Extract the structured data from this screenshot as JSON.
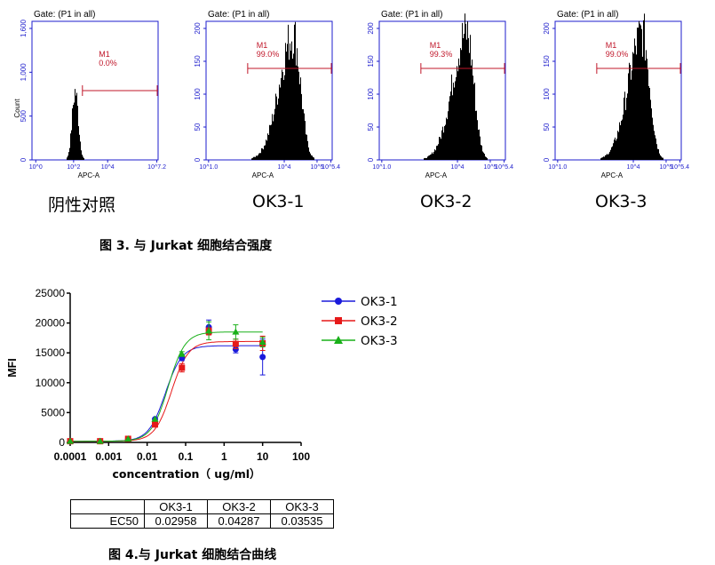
{
  "histograms": [
    {
      "gate": "Gate: (P1 in all)",
      "gate_name": "M1",
      "percent": "0.0%",
      "xaxis_label": "APC-A",
      "yaxis_label": "Count",
      "y_ticks": [
        "0",
        "500",
        "1,000",
        "1,600"
      ],
      "x_ticks": [
        "10^0",
        "10^2",
        "10^4",
        "10^7.2"
      ],
      "sample": "阴性对照",
      "ymax": 1600,
      "peak_log": 2.2,
      "peak_height": 0.52
    },
    {
      "gate": "Gate: (P1 in all)",
      "gate_name": "M1",
      "percent": "99.0%",
      "xaxis_label": "APC-A",
      "yaxis_label": "",
      "y_ticks": [
        "0",
        "50",
        "100",
        "150",
        "200"
      ],
      "x_ticks": [
        "10^1.0",
        "10^4",
        "10^5",
        "10^5.4"
      ],
      "sample": "OK3-1",
      "ymax": 200,
      "peak_log": 4.35,
      "peak_height": 0.95
    },
    {
      "gate": "Gate: (P1 in all)",
      "gate_name": "M1",
      "percent": "99.3%",
      "xaxis_label": "APC-A",
      "yaxis_label": "",
      "y_ticks": [
        "0",
        "50",
        "100",
        "150",
        "200"
      ],
      "x_ticks": [
        "10^1.0",
        "10^4",
        "10^5",
        "10^5.4"
      ],
      "sample": "OK3-2",
      "ymax": 200,
      "peak_log": 4.35,
      "peak_height": 0.97
    },
    {
      "gate": "Gate: (P1 in all)",
      "gate_name": "M1",
      "percent": "99.0%",
      "xaxis_label": "APC-A",
      "yaxis_label": "",
      "y_ticks": [
        "0",
        "50",
        "100",
        "150",
        "200"
      ],
      "x_ticks": [
        "10^1.0",
        "10^4",
        "10^5",
        "10^5.4"
      ],
      "sample": "OK3-3",
      "ymax": 200,
      "peak_log": 4.35,
      "peak_height": 0.96
    }
  ],
  "captions": {
    "fig3": "图 3. 与 Jurkat 细胞结合强度",
    "fig4": "图 4.与 Jurkat 细胞结合曲线"
  },
  "chart_data": {
    "type": "scatter",
    "title": "",
    "xlabel": "concentration（ ug/ml）",
    "ylabel": "MFI",
    "xscale": "log",
    "xlim": [
      0.0001,
      100
    ],
    "ylim": [
      0,
      25000
    ],
    "x_ticks": [
      "0.0001",
      "0.001",
      "0.01",
      "0.1",
      "1",
      "10",
      "100"
    ],
    "y_ticks": [
      "0",
      "5000",
      "10000",
      "15000",
      "20000",
      "25000"
    ],
    "x": [
      0.0001,
      0.0006,
      0.0032,
      0.016,
      0.08,
      0.4,
      2,
      10
    ],
    "series": [
      {
        "name": "OK3-1",
        "color": "#1a1adb",
        "marker": "circle",
        "values": [
          200,
          200,
          600,
          3900,
          14100,
          19300,
          15600,
          14300
        ],
        "errors": [
          80,
          80,
          150,
          300,
          400,
          1200,
          600,
          3000
        ],
        "fit": {
          "bottom": 200,
          "top": 16200,
          "ec50": 0.02958,
          "hill": 2.0
        }
      },
      {
        "name": "OK3-2",
        "color": "#e61919",
        "marker": "square",
        "values": [
          200,
          200,
          600,
          3000,
          12500,
          18600,
          16500,
          16600
        ],
        "errors": [
          80,
          80,
          150,
          300,
          700,
          600,
          800,
          1200
        ],
        "fit": {
          "bottom": 200,
          "top": 16900,
          "ec50": 0.04287,
          "hill": 2.0
        }
      },
      {
        "name": "OK3-3",
        "color": "#19b019",
        "marker": "triangle",
        "values": [
          200,
          200,
          600,
          3900,
          14800,
          18700,
          18500,
          16800
        ],
        "errors": [
          80,
          80,
          150,
          300,
          400,
          1500,
          1200,
          800
        ],
        "fit": {
          "bottom": 200,
          "top": 18500,
          "ec50": 0.03535,
          "hill": 2.0
        }
      }
    ]
  },
  "ec50_table": {
    "headers": [
      "",
      "OK3-1",
      "OK3-2",
      "OK3-3"
    ],
    "row_label": "EC50",
    "values": [
      "0.02958",
      "0.04287",
      "0.03535"
    ]
  }
}
